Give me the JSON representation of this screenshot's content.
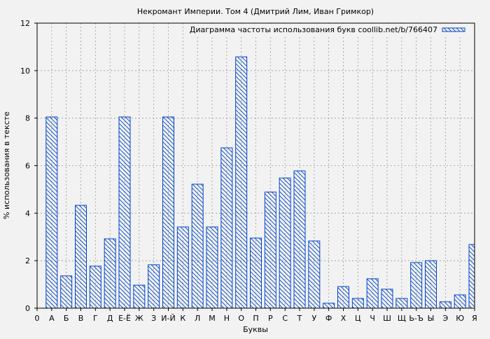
{
  "chart_data": {
    "type": "bar",
    "title": "Некромант Империи. Том 4 (Дмитрий Лим, Иван Гримкор)",
    "xlabel": "Буквы",
    "ylabel": "% использования в тексте",
    "legend": {
      "label": "Диаграмма частоты использования букв coollib.net/b/766407",
      "placement": "top-right"
    },
    "x_origin_label": "0",
    "categories": [
      "А",
      "Б",
      "В",
      "Г",
      "Д",
      "Е-Ё",
      "Ж",
      "З",
      "И-Й",
      "К",
      "Л",
      "М",
      "Н",
      "О",
      "П",
      "Р",
      "С",
      "Т",
      "У",
      "Ф",
      "Х",
      "Ц",
      "Ч",
      "Ш",
      "Щ",
      "Ь-Ъ",
      "Ы",
      "Э",
      "Ю",
      "Я"
    ],
    "values": [
      8.05,
      1.36,
      4.33,
      1.77,
      2.92,
      8.05,
      0.97,
      1.83,
      8.05,
      3.42,
      5.22,
      3.42,
      6.75,
      10.58,
      2.95,
      4.89,
      5.48,
      5.78,
      2.83,
      0.21,
      0.91,
      0.41,
      1.24,
      0.8,
      0.41,
      1.92,
      2.0,
      0.27,
      0.56,
      2.68
    ],
    "ylim": [
      0,
      12
    ],
    "yticks": [
      0,
      2,
      4,
      6,
      8,
      10,
      12
    ],
    "grid": true,
    "colors": {
      "bar": "#0044cc",
      "background": "#f2f2f2",
      "grid": "#999999"
    }
  }
}
